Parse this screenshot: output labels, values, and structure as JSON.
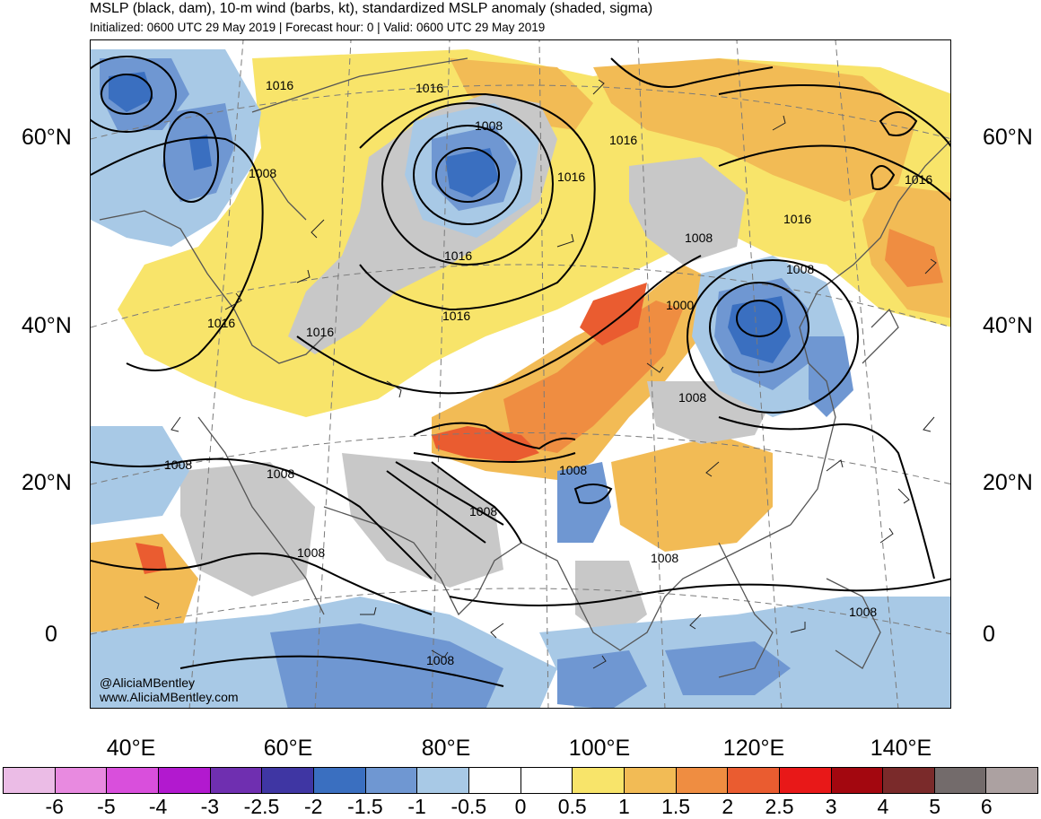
{
  "header": {
    "title": "MSLP (black, dam), 10-m wind (barbs, kt), standardized MSLP anomaly (shaded, sigma)",
    "subtitle": "Initialized: 0600 UTC 29 May 2019 | Forecast hour: 0 | Valid: 0600 UTC 29 May 2019"
  },
  "map": {
    "lat_labels": [
      "60°N",
      "40°N",
      "20°N",
      "0"
    ],
    "lon_labels": [
      "40°E",
      "60°E",
      "80°E",
      "100°E",
      "120°E",
      "140°E"
    ],
    "contour_labels": [
      "1016",
      "1016",
      "1016",
      "1016",
      "1016",
      "1016",
      "1016",
      "1016",
      "1016",
      "1008",
      "1008",
      "1008",
      "1008",
      "1008",
      "1008",
      "1008",
      "1008",
      "1008",
      "1008",
      "1008",
      "1008",
      "1000"
    ],
    "credit_handle": "@AliciaMBentley",
    "credit_url": "www.AliciaMBentley.com"
  },
  "colorbar": {
    "labels": [
      "-6",
      "-5",
      "-4",
      "-3",
      "-2.5",
      "-2",
      "-1.5",
      "-1",
      "-0.5",
      "0",
      "0.5",
      "1",
      "1.5",
      "2",
      "2.5",
      "3",
      "4",
      "5",
      "6"
    ],
    "colors": [
      "#ebbce6",
      "#e88ae0",
      "#d94fdc",
      "#b219cf",
      "#6f2fb0",
      "#3f36a3",
      "#3a6fc0",
      "#6f97d2",
      "#a8c9e6",
      "#ffffff",
      "#ffffff",
      "#f8e46a",
      "#f2bb55",
      "#ef8d41",
      "#ea5c30",
      "#e81818",
      "#a3070f",
      "#7a2a2a",
      "#736b6b",
      "#aca1a1"
    ]
  }
}
